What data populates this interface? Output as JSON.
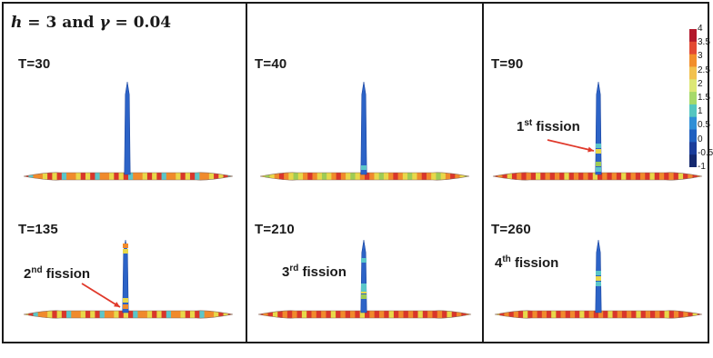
{
  "figure": {
    "header": {
      "h_symbol": "h",
      "h_value": "= 3 and",
      "gamma_symbol": "γ",
      "gamma_value": "= 0.04"
    }
  },
  "panels": [
    {
      "id": "p1",
      "time_label": "T=30",
      "fission": null
    },
    {
      "id": "p2",
      "time_label": "T=40",
      "fission": null
    },
    {
      "id": "p3",
      "time_label": "T=90",
      "fission": {
        "ordinal": "1",
        "suffix": "st",
        "word": "fission",
        "arrow": true
      }
    },
    {
      "id": "p4",
      "time_label": "T=135",
      "fission": {
        "ordinal": "2",
        "suffix": "nd",
        "word": "fission",
        "arrow": true
      }
    },
    {
      "id": "p5",
      "time_label": "T=210",
      "fission": {
        "ordinal": "3",
        "suffix": "rd",
        "word": "fission",
        "arrow": false
      }
    },
    {
      "id": "p6",
      "time_label": "T=260",
      "fission": {
        "ordinal": "4",
        "suffix": "th",
        "word": "fission",
        "arrow": false
      }
    }
  ],
  "colorbar": {
    "ticks": [
      "4",
      "3.5",
      "3",
      "2.5",
      "2",
      "1.5",
      "1",
      "0.5",
      "0",
      "-0.5",
      "-1"
    ],
    "colors": [
      "#b2182b",
      "#e34a33",
      "#f28e2b",
      "#f2c14e",
      "#dce775",
      "#a6d96a",
      "#55c6c0",
      "#2f8fd6",
      "#1f5fbf",
      "#1a3c9a",
      "#14286e"
    ]
  },
  "colors": {
    "stem": "#2c63c7",
    "stem_edge": "#1d47a0",
    "arrow": "#e0392b",
    "rod_red": "#d9362b",
    "rod_orange": "#f08a2c",
    "rod_yellow": "#e8d84a",
    "rod_cyan": "#5bc6c9",
    "rod_green": "#9ecb55"
  }
}
